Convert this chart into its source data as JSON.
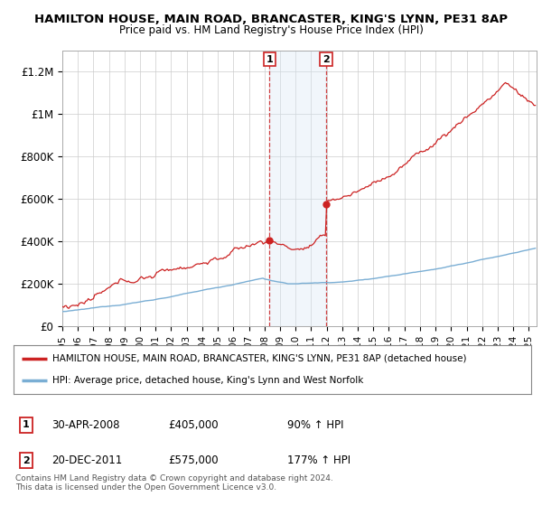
{
  "title1": "HAMILTON HOUSE, MAIN ROAD, BRANCASTER, KING'S LYNN, PE31 8AP",
  "title2": "Price paid vs. HM Land Registry's House Price Index (HPI)",
  "legend_line1": "HAMILTON HOUSE, MAIN ROAD, BRANCASTER, KING'S LYNN, PE31 8AP (detached house)",
  "legend_line2": "HPI: Average price, detached house, King's Lynn and West Norfolk",
  "transaction1_date": "30-APR-2008",
  "transaction1_price": "£405,000",
  "transaction1_hpi": "90% ↑ HPI",
  "transaction2_date": "20-DEC-2011",
  "transaction2_price": "£575,000",
  "transaction2_hpi": "177% ↑ HPI",
  "footer": "Contains HM Land Registry data © Crown copyright and database right 2024.\nThis data is licensed under the Open Government Licence v3.0.",
  "hpi_color": "#7aaed4",
  "price_color": "#cc2222",
  "background_color": "#ffffff",
  "plot_bg_color": "#ffffff",
  "grid_color": "#cccccc",
  "shade_color": "#d8e8f5",
  "ylim": [
    0,
    1300000
  ],
  "yticks": [
    0,
    200000,
    400000,
    600000,
    800000,
    1000000,
    1200000
  ],
  "ytick_labels": [
    "£0",
    "£200K",
    "£400K",
    "£600K",
    "£800K",
    "£1M",
    "£1.2M"
  ],
  "transaction1_x": 2008.33,
  "transaction1_y": 405000,
  "transaction2_x": 2011.97,
  "transaction2_y": 575000,
  "xmin": 1995,
  "xmax": 2025.5
}
